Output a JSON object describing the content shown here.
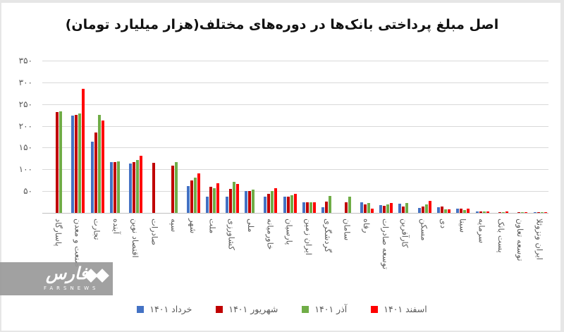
{
  "title": "اصل مبلغ پرداختی بانک‌ها در دوره‌های مختلف(هزار میلیارد تومان)",
  "chart_data": {
    "type": "bar",
    "title": "اصل مبلغ پرداختی بانک‌ها در دوره‌های مختلف(هزار میلیارد تومان)",
    "xlabel": "",
    "ylabel": "",
    "ylim": [
      0,
      350
    ],
    "yticks": [
      0,
      50,
      100,
      150,
      200,
      250,
      300,
      350
    ],
    "ytick_labels": [
      "",
      "۵۰",
      "۱۰۰",
      "۱۵۰",
      "۲۰۰",
      "۲۵۰",
      "۳۰۰",
      "۳۵۰"
    ],
    "grid": true,
    "legend_position": "bottom",
    "categories": [
      "پاسارگاد",
      "صنعت و معدن",
      "تجارت",
      "آینده",
      "اقتصاد نوین",
      "صادرات",
      "سپه",
      "شهر",
      "ملت",
      "کشاورزی",
      "ملی",
      "خاورمیانه",
      "پارسیان",
      "ایران زمین",
      "گردشگری",
      "سامان",
      "رفاه",
      "توسعه صادرات",
      "کارآفرین",
      "مسکن",
      "دی",
      "سینا",
      "سرمایه",
      "پست بانک",
      "توسعه تعاون",
      "ایران ونزوئلا"
    ],
    "series": [
      {
        "name": "خرداد ۱۴۰۱",
        "color": "#4472c4",
        "values": [
          0,
          224,
          164,
          116,
          114,
          0,
          0,
          61,
          38,
          37,
          51,
          38,
          38,
          25,
          13,
          0,
          25,
          18,
          21,
          12,
          13,
          9,
          4,
          0,
          0,
          1
        ]
      },
      {
        "name": "شهریور ۱۴۰۱",
        "color": "#c00000",
        "values": [
          231,
          225,
          184,
          116,
          117,
          115,
          109,
          74,
          60,
          55,
          50,
          44,
          38,
          25,
          26,
          25,
          20,
          17,
          15,
          15,
          14,
          9,
          4,
          2,
          2,
          1
        ]
      },
      {
        "name": "آذر ۱۴۰۱",
        "color": "#70ad47",
        "values": [
          234,
          229,
          225,
          119,
          122,
          0,
          116,
          81,
          56,
          71,
          54,
          50,
          40,
          24,
          39,
          37,
          23,
          20,
          22,
          20,
          8,
          6,
          4,
          2,
          2,
          1
        ]
      },
      {
        "name": "اسفند ۱۴۰۱",
        "color": "#ff0000",
        "values": [
          0,
          285,
          212,
          0,
          131,
          0,
          0,
          90,
          68,
          67,
          0,
          57,
          44,
          25,
          0,
          0,
          10,
          23,
          0,
          28,
          8,
          9,
          4,
          3,
          2,
          1
        ]
      }
    ]
  },
  "legend": [
    {
      "label": "خرداد ۱۴۰۱",
      "color": "#4472c4"
    },
    {
      "label": "شهریور ۱۴۰۱",
      "color": "#c00000"
    },
    {
      "label": "آذر ۱۴۰۱",
      "color": "#70ad47"
    },
    {
      "label": "اسفند ۱۴۰۱",
      "color": "#ff0000"
    }
  ],
  "watermark": {
    "text": "فارس",
    "subtext": "FARSNEWS"
  }
}
